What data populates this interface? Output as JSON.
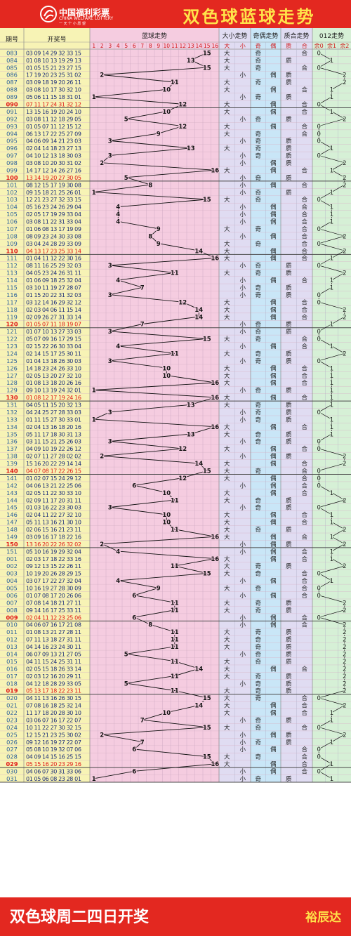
{
  "banner": {
    "title": "双色球蓝球走势",
    "logo_cn": "中国福利彩票",
    "logo_en": "CHINA WELFARE LOTTERY",
    "logo_slogan": "一 天 个 小 愿 望"
  },
  "footer": {
    "text": "双色球周二四日开奖",
    "author": "裕辰达"
  },
  "colors": {
    "banner": "#e32820",
    "banner_title": "#ffe34a",
    "issue": "#2a5d9c",
    "issue_highlight": "#e01818",
    "numbers": "#1a2a7a",
    "row_highlight": "#e01818"
  },
  "chart_data": {
    "type": "table",
    "headers": {
      "issue": "期号",
      "draw": "开奖号",
      "blue_trend": "蓝球走势",
      "size": "大小走势",
      "parity": "奇偶走势",
      "prime": "质合走势",
      "mod3": "012走势"
    },
    "blue_columns": [
      "1",
      "2",
      "3",
      "4",
      "5",
      "6",
      "7",
      "8",
      "9",
      "10",
      "11",
      "12",
      "13",
      "14",
      "15",
      "16"
    ],
    "sub_headers": {
      "size": [
        "大",
        "小"
      ],
      "parity": [
        "奇",
        "偶"
      ],
      "prime": [
        "质",
        "合"
      ],
      "mod3": [
        "余0",
        "余1",
        "余2"
      ]
    },
    "highlight_issues": [
      "090",
      "100",
      "110",
      "120",
      "130",
      "140",
      "150",
      "009",
      "019",
      "029"
    ],
    "rows": [
      {
        "issue": "083",
        "reds": "03 09 14 29 32 33",
        "blue": 15,
        "size": "大",
        "parity": "奇",
        "prime": "合",
        "mod3": "0"
      },
      {
        "issue": "084",
        "reds": "01 08 10 13 19 29",
        "blue": 13,
        "size": "大",
        "parity": "奇",
        "prime": "质",
        "mod3": "1"
      },
      {
        "issue": "085",
        "reds": "01 05 15 21 23 27",
        "blue": 15,
        "size": "大",
        "parity": "奇",
        "prime": "合",
        "mod3": "0"
      },
      {
        "issue": "086",
        "reds": "17 19 20 23 25 31",
        "blue": 2,
        "size": "小",
        "parity": "偶",
        "prime": "质",
        "mod3": "2"
      },
      {
        "issue": "087",
        "reds": "03 09 18 19 20 26",
        "blue": 11,
        "size": "大",
        "parity": "奇",
        "prime": "质",
        "mod3": "2"
      },
      {
        "issue": "088",
        "reds": "03 08 10 17 30 32",
        "blue": 10,
        "size": "大",
        "parity": "偶",
        "prime": "合",
        "mod3": "1"
      },
      {
        "issue": "089",
        "reds": "05 06 11 15 18 31",
        "blue": 1,
        "size": "小",
        "parity": "奇",
        "prime": "质",
        "mod3": "1"
      },
      {
        "issue": "090",
        "reds": "07 11 17 24 31 32",
        "blue": 12,
        "size": "大",
        "parity": "偶",
        "prime": "合",
        "mod3": "0"
      },
      {
        "issue": "091",
        "reds": "13 15 16 19 20 24",
        "blue": 10,
        "size": "大",
        "parity": "偶",
        "prime": "合",
        "mod3": "1"
      },
      {
        "issue": "092",
        "reds": "03 08 11 12 18 29",
        "blue": 5,
        "size": "小",
        "parity": "奇",
        "prime": "质",
        "mod3": "2"
      },
      {
        "issue": "093",
        "reds": "01 05 07 11 12 15",
        "blue": 12,
        "size": "大",
        "parity": "偶",
        "prime": "合",
        "mod3": "0"
      },
      {
        "issue": "094",
        "reds": "06 13 17 22 25 27",
        "blue": 9,
        "size": "大",
        "parity": "奇",
        "prime": "合",
        "mod3": "0"
      },
      {
        "issue": "095",
        "reds": "04 06 09 14 21 23",
        "blue": 3,
        "size": "小",
        "parity": "奇",
        "prime": "质",
        "mod3": "0"
      },
      {
        "issue": "096",
        "reds": "02 04 14 18 23 27",
        "blue": 13,
        "size": "大",
        "parity": "奇",
        "prime": "质",
        "mod3": "1"
      },
      {
        "issue": "097",
        "reds": "04 10 12 13 18 30",
        "blue": 3,
        "size": "小",
        "parity": "奇",
        "prime": "质",
        "mod3": "0"
      },
      {
        "issue": "098",
        "reds": "03 08 10 20 30 31",
        "blue": 2,
        "size": "小",
        "parity": "偶",
        "prime": "质",
        "mod3": "2"
      },
      {
        "issue": "099",
        "reds": "14 17 12 14 26 27",
        "blue": 16,
        "size": "大",
        "parity": "偶",
        "prime": "合",
        "mod3": "1"
      },
      {
        "issue": "100",
        "reds": "13 14 19 20 27 30",
        "blue": 5,
        "size": "小",
        "parity": "奇",
        "prime": "质",
        "mod3": "2"
      },
      {
        "issue": "101",
        "reds": "08 12 15 17 19 30",
        "blue": 8,
        "size": "小",
        "parity": "偶",
        "prime": "合",
        "mod3": "2"
      },
      {
        "issue": "102",
        "reds": "09 15 18 21 25 26",
        "blue": 1,
        "size": "小",
        "parity": "奇",
        "prime": "质",
        "mod3": "1"
      },
      {
        "issue": "103",
        "reds": "12 21 23 27 32 33",
        "blue": 15,
        "size": "大",
        "parity": "奇",
        "prime": "合",
        "mod3": "0"
      },
      {
        "issue": "104",
        "reds": "05 16 23 24 26 29",
        "blue": 4,
        "size": "小",
        "parity": "偶",
        "prime": "合",
        "mod3": "1"
      },
      {
        "issue": "105",
        "reds": "02 05 17 19 29 33",
        "blue": 4,
        "size": "小",
        "parity": "偶",
        "prime": "合",
        "mod3": "1"
      },
      {
        "issue": "106",
        "reds": "03 08 11 22 31 33",
        "blue": 4,
        "size": "小",
        "parity": "偶",
        "prime": "合",
        "mod3": "1"
      },
      {
        "issue": "107",
        "reds": "01 06 08 13 17 19",
        "blue": 9,
        "size": "大",
        "parity": "奇",
        "prime": "合",
        "mod3": "0"
      },
      {
        "issue": "108",
        "reds": "08 09 23 24 30 33",
        "blue": 8,
        "size": "小",
        "parity": "偶",
        "prime": "合",
        "mod3": "2"
      },
      {
        "issue": "109",
        "reds": "03 04 24 28 29 33",
        "blue": 9,
        "size": "大",
        "parity": "奇",
        "prime": "合",
        "mod3": "0"
      },
      {
        "issue": "110",
        "reds": "04 13 17 23 25 33",
        "blue": 14,
        "size": "大",
        "parity": "偶",
        "prime": "合",
        "mod3": "2"
      },
      {
        "issue": "111",
        "reds": "01 04 11 12 22 30",
        "blue": 16,
        "size": "大",
        "parity": "偶",
        "prime": "合",
        "mod3": "1"
      },
      {
        "issue": "112",
        "reds": "08 11 16 25 29 32",
        "blue": 3,
        "size": "小",
        "parity": "奇",
        "prime": "质",
        "mod3": "0"
      },
      {
        "issue": "113",
        "reds": "04 05 23 24 26 31",
        "blue": 11,
        "size": "大",
        "parity": "奇",
        "prime": "质",
        "mod3": "2"
      },
      {
        "issue": "114",
        "reds": "01 06 09 18 25 32",
        "blue": 4,
        "size": "小",
        "parity": "偶",
        "prime": "合",
        "mod3": "1"
      },
      {
        "issue": "115",
        "reds": "03 10 11 19 27 28",
        "blue": 7,
        "size": "小",
        "parity": "奇",
        "prime": "质",
        "mod3": "1"
      },
      {
        "issue": "116",
        "reds": "01 15 20 22 31 32",
        "blue": 3,
        "size": "小",
        "parity": "奇",
        "prime": "质",
        "mod3": "0"
      },
      {
        "issue": "117",
        "reds": "03 12 14 16 29 32",
        "blue": 12,
        "size": "大",
        "parity": "偶",
        "prime": "合",
        "mod3": "0"
      },
      {
        "issue": "118",
        "reds": "02 03 04 06 11 15",
        "blue": 14,
        "size": "大",
        "parity": "偶",
        "prime": "合",
        "mod3": "2"
      },
      {
        "issue": "119",
        "reds": "02 09 26 27 31 33",
        "blue": 14,
        "size": "大",
        "parity": "偶",
        "prime": "合",
        "mod3": "2"
      },
      {
        "issue": "120",
        "reds": "01 05 07 11 18 19",
        "blue": 7,
        "size": "小",
        "parity": "奇",
        "prime": "质",
        "mod3": "1"
      },
      {
        "issue": "121",
        "reds": "01 07 10 13 27 33",
        "blue": 3,
        "size": "小",
        "parity": "奇",
        "prime": "质",
        "mod3": "0"
      },
      {
        "issue": "122",
        "reds": "05 07 09 16 17 29",
        "blue": 15,
        "size": "大",
        "parity": "奇",
        "prime": "合",
        "mod3": "0"
      },
      {
        "issue": "123",
        "reds": "02 15 22 26 30 33",
        "blue": 4,
        "size": "小",
        "parity": "偶",
        "prime": "合",
        "mod3": "1"
      },
      {
        "issue": "124",
        "reds": "02 14 15 17 25 30",
        "blue": 11,
        "size": "大",
        "parity": "奇",
        "prime": "质",
        "mod3": "2"
      },
      {
        "issue": "125",
        "reds": "01 04 13 18 26 30",
        "blue": 3,
        "size": "小",
        "parity": "奇",
        "prime": "质",
        "mod3": "0"
      },
      {
        "issue": "126",
        "reds": "14 18 23 24 26 33",
        "blue": 10,
        "size": "大",
        "parity": "偶",
        "prime": "合",
        "mod3": "1"
      },
      {
        "issue": "127",
        "reds": "02 05 13 20 27 32",
        "blue": 10,
        "size": "大",
        "parity": "偶",
        "prime": "合",
        "mod3": "1"
      },
      {
        "issue": "128",
        "reds": "01 08 13 18 20 26",
        "blue": 16,
        "size": "大",
        "parity": "偶",
        "prime": "合",
        "mod3": "1"
      },
      {
        "issue": "129",
        "reds": "09 10 13 19 24 32",
        "blue": 1,
        "size": "小",
        "parity": "奇",
        "prime": "质",
        "mod3": "1"
      },
      {
        "issue": "130",
        "reds": "01 08 12 17 19 24",
        "blue": 16,
        "size": "大",
        "parity": "偶",
        "prime": "合",
        "mod3": "1"
      },
      {
        "issue": "131",
        "reds": "04 05 11 15 20 32",
        "blue": 13,
        "size": "大",
        "parity": "奇",
        "prime": "质",
        "mod3": "1"
      },
      {
        "issue": "132",
        "reds": "04 24 25 27 28 33",
        "blue": 3,
        "size": "小",
        "parity": "奇",
        "prime": "质",
        "mod3": "0"
      },
      {
        "issue": "133",
        "reds": "01 11 15 27 30 33",
        "blue": 1,
        "size": "小",
        "parity": "奇",
        "prime": "质",
        "mod3": "1"
      },
      {
        "issue": "134",
        "reds": "02 04 13 16 18 20",
        "blue": 16,
        "size": "大",
        "parity": "偶",
        "prime": "合",
        "mod3": "1"
      },
      {
        "issue": "135",
        "reds": "05 11 17 18 30 31",
        "blue": 13,
        "size": "大",
        "parity": "奇",
        "prime": "质",
        "mod3": "1"
      },
      {
        "issue": "136",
        "reds": "03 11 15 21 25 26",
        "blue": 3,
        "size": "小",
        "parity": "奇",
        "prime": "质",
        "mod3": "0"
      },
      {
        "issue": "137",
        "reds": "04 09 10 19 22 26",
        "blue": 12,
        "size": "大",
        "parity": "偶",
        "prime": "合",
        "mod3": "0"
      },
      {
        "issue": "138",
        "reds": "02 07 11 27 28 02",
        "blue": 2,
        "size": "小",
        "parity": "偶",
        "prime": "质",
        "mod3": "2"
      },
      {
        "issue": "139",
        "reds": "15 16 20 22 29 14",
        "blue": 14,
        "size": "大",
        "parity": "偶",
        "prime": "合",
        "mod3": "2"
      },
      {
        "issue": "140",
        "reds": "04 07 08 17 22 26",
        "blue": 15,
        "size": "大",
        "parity": "奇",
        "prime": "合",
        "mod3": "0"
      },
      {
        "issue": "141",
        "reds": "01 02 07 15 24 29",
        "blue": 12,
        "size": "大",
        "parity": "偶",
        "prime": "合",
        "mod3": "0"
      },
      {
        "issue": "142",
        "reds": "04 06 13 21 22 25",
        "blue": 6,
        "size": "小",
        "parity": "偶",
        "prime": "合",
        "mod3": "0"
      },
      {
        "issue": "143",
        "reds": "02 05 11 22 30 33",
        "blue": 10,
        "size": "大",
        "parity": "偶",
        "prime": "合",
        "mod3": "1"
      },
      {
        "issue": "144",
        "reds": "02 09 11 17 20 31",
        "blue": 11,
        "size": "大",
        "parity": "奇",
        "prime": "质",
        "mod3": "2"
      },
      {
        "issue": "145",
        "reds": "01 03 16 22 23 30",
        "blue": 3,
        "size": "小",
        "parity": "奇",
        "prime": "质",
        "mod3": "0"
      },
      {
        "issue": "146",
        "reds": "02 04 11 22 27 32",
        "blue": 10,
        "size": "大",
        "parity": "偶",
        "prime": "合",
        "mod3": "1"
      },
      {
        "issue": "147",
        "reds": "05 11 13 16 21 30",
        "blue": 10,
        "size": "大",
        "parity": "偶",
        "prime": "合",
        "mod3": "1"
      },
      {
        "issue": "148",
        "reds": "02 06 15 16 21 23",
        "blue": 11,
        "size": "大",
        "parity": "奇",
        "prime": "质",
        "mod3": "2"
      },
      {
        "issue": "149",
        "reds": "03 09 16 17 18 22",
        "blue": 16,
        "size": "大",
        "parity": "偶",
        "prime": "合",
        "mod3": "1"
      },
      {
        "issue": "150",
        "reds": "13 16 20 22 26 32",
        "blue": 2,
        "size": "小",
        "parity": "偶",
        "prime": "质",
        "mod3": "2"
      },
      {
        "issue": "151",
        "reds": "05 10 16 19 29 32",
        "blue": 4,
        "size": "小",
        "parity": "偶",
        "prime": "合",
        "mod3": "1"
      },
      {
        "issue": "001",
        "reds": "02 03 17 18 22 33",
        "blue": 16,
        "size": "大",
        "parity": "偶",
        "prime": "合",
        "mod3": "1"
      },
      {
        "issue": "002",
        "reds": "09 12 13 15 22 26",
        "blue": 11,
        "size": "大",
        "parity": "奇",
        "prime": "质",
        "mod3": "2"
      },
      {
        "issue": "003",
        "reds": "10 19 20 26 28 29",
        "blue": 15,
        "size": "大",
        "parity": "奇",
        "prime": "合",
        "mod3": "0"
      },
      {
        "issue": "004",
        "reds": "03 07 17 22 27 32",
        "blue": 4,
        "size": "小",
        "parity": "偶",
        "prime": "合",
        "mod3": "1"
      },
      {
        "issue": "005",
        "reds": "10 16 19 27 28 30",
        "blue": 9,
        "size": "大",
        "parity": "奇",
        "prime": "合",
        "mod3": "0"
      },
      {
        "issue": "006",
        "reds": "01 07 08 17 20 26",
        "blue": 6,
        "size": "小",
        "parity": "偶",
        "prime": "合",
        "mod3": "0"
      },
      {
        "issue": "007",
        "reds": "07 08 14 18 21 27",
        "blue": 11,
        "size": "大",
        "parity": "奇",
        "prime": "质",
        "mod3": "2"
      },
      {
        "issue": "008",
        "reds": "09 14 16 17 25 33",
        "blue": 11,
        "size": "大",
        "parity": "奇",
        "prime": "质",
        "mod3": "2"
      },
      {
        "issue": "009",
        "reds": "02 04 11 12 23 25",
        "blue": 6,
        "size": "小",
        "parity": "偶",
        "prime": "合",
        "mod3": "0"
      },
      {
        "issue": "010",
        "reds": "04 06 07 16 17 21",
        "blue": 8,
        "size": "小",
        "parity": "偶",
        "prime": "合",
        "mod3": "2"
      },
      {
        "issue": "011",
        "reds": "01 08 13 21 27 28",
        "blue": 11,
        "size": "大",
        "parity": "奇",
        "prime": "质",
        "mod3": "2"
      },
      {
        "issue": "012",
        "reds": "07 11 13 18 27 31",
        "blue": 11,
        "size": "大",
        "parity": "奇",
        "prime": "质",
        "mod3": "2"
      },
      {
        "issue": "013",
        "reds": "04 14 16 23 24 30",
        "blue": 11,
        "size": "大",
        "parity": "奇",
        "prime": "质",
        "mod3": "2"
      },
      {
        "issue": "014",
        "reds": "06 07 09 13 21 27",
        "blue": 5,
        "size": "小",
        "parity": "奇",
        "prime": "质",
        "mod3": "2"
      },
      {
        "issue": "015",
        "reds": "04 11 15 24 25 31",
        "blue": 11,
        "size": "大",
        "parity": "奇",
        "prime": "质",
        "mod3": "2"
      },
      {
        "issue": "016",
        "reds": "02 05 15 18 26 33",
        "blue": 14,
        "size": "大",
        "parity": "偶",
        "prime": "合",
        "mod3": "2"
      },
      {
        "issue": "017",
        "reds": "02 03 12 16 20 29",
        "blue": 11,
        "size": "大",
        "parity": "奇",
        "prime": "质",
        "mod3": "2"
      },
      {
        "issue": "018",
        "reds": "04 12 18 28 29 33",
        "blue": 5,
        "size": "小",
        "parity": "奇",
        "prime": "质",
        "mod3": "2"
      },
      {
        "issue": "019",
        "reds": "05 13 17 18 22 23",
        "blue": 11,
        "size": "大",
        "parity": "奇",
        "prime": "质",
        "mod3": "2"
      },
      {
        "issue": "020",
        "reds": "04 11 13 16 26 30",
        "blue": 15,
        "size": "大",
        "parity": "奇",
        "prime": "合",
        "mod3": "0"
      },
      {
        "issue": "021",
        "reds": "07 08 16 18 25 32",
        "blue": 14,
        "size": "大",
        "parity": "偶",
        "prime": "合",
        "mod3": "2"
      },
      {
        "issue": "022",
        "reds": "11 17 18 20 28 30",
        "blue": 10,
        "size": "大",
        "parity": "偶",
        "prime": "合",
        "mod3": "1"
      },
      {
        "issue": "023",
        "reds": "03 06 07 16 17 22",
        "blue": 7,
        "size": "小",
        "parity": "奇",
        "prime": "质",
        "mod3": "1"
      },
      {
        "issue": "024",
        "reds": "10 11 22 27 30 32",
        "blue": 15,
        "size": "大",
        "parity": "奇",
        "prime": "合",
        "mod3": "0"
      },
      {
        "issue": "025",
        "reds": "12 15 21 23 25 30",
        "blue": 2,
        "size": "小",
        "parity": "偶",
        "prime": "质",
        "mod3": "2"
      },
      {
        "issue": "026",
        "reds": "09 12 16 19 27 22",
        "blue": 7,
        "size": "小",
        "parity": "奇",
        "prime": "质",
        "mod3": "1"
      },
      {
        "issue": "027",
        "reds": "05 08 10 19 32 07",
        "blue": 6,
        "size": "小",
        "parity": "偶",
        "prime": "合",
        "mod3": "0"
      },
      {
        "issue": "028",
        "reds": "04 09 14 15 16 25",
        "blue": 15,
        "size": "大",
        "parity": "奇",
        "prime": "合",
        "mod3": "0"
      },
      {
        "issue": "029",
        "reds": "05 15 16 20 23 29",
        "blue": 16,
        "size": "大",
        "parity": "偶",
        "prime": "合",
        "mod3": "1"
      },
      {
        "issue": "030",
        "reds": "04 06 07 30 31 33",
        "blue": 6,
        "size": "小",
        "parity": "偶",
        "prime": "合",
        "mod3": "0"
      },
      {
        "issue": "031",
        "reds": "01 05 06 08 23 28",
        "blue": 1,
        "size": "小",
        "parity": "奇",
        "prime": "质",
        "mod3": "1"
      }
    ]
  }
}
